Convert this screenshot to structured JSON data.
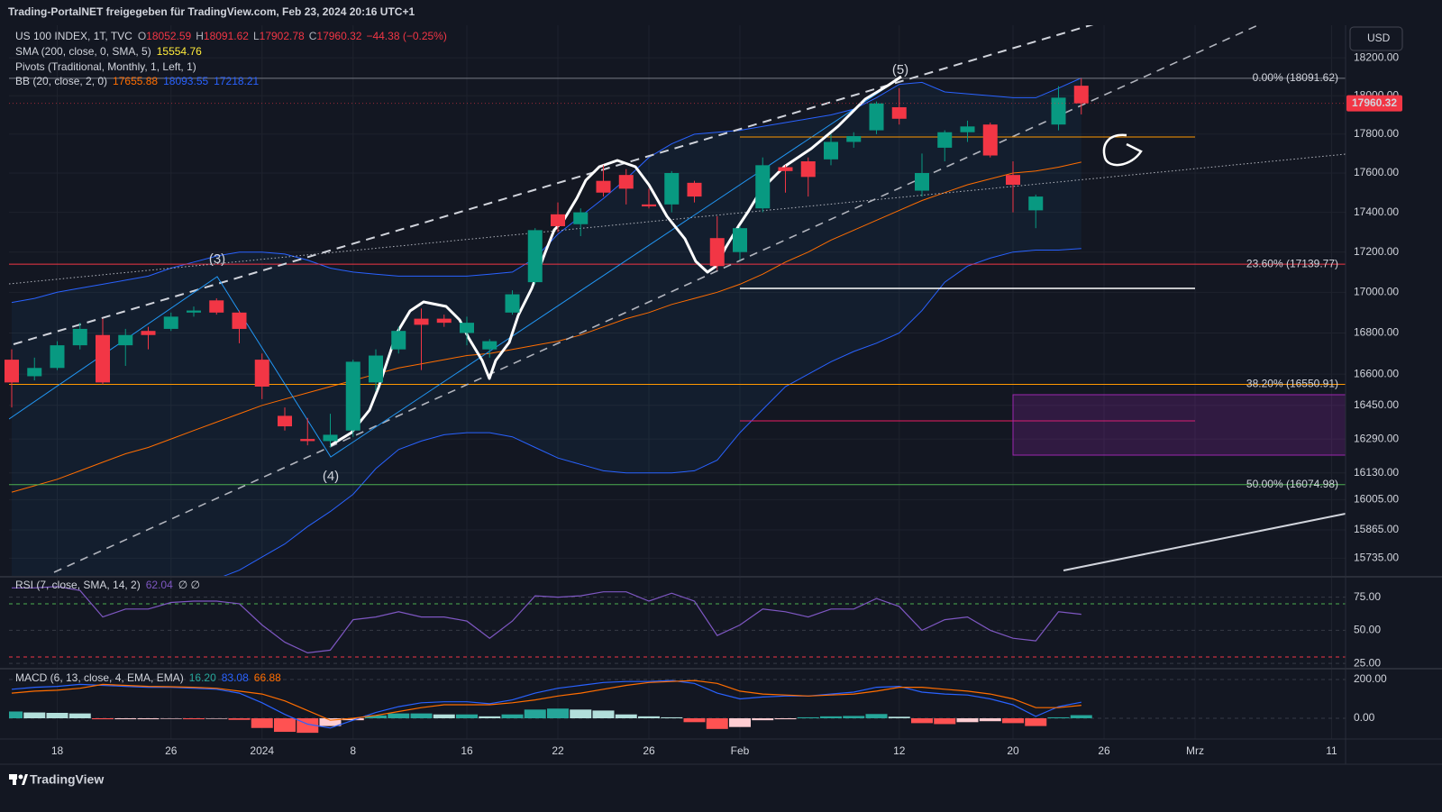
{
  "header": {
    "title": "Trading-PortalNET freigegeben für TradingView.com, Feb 23, 2024 20:16 UTC+1",
    "currency": "USD",
    "logo": "TradingView"
  },
  "legend": {
    "symbol": "US 100 INDEX, 1T, TVC",
    "ohlc_labels": [
      "O",
      "H",
      "L",
      "C"
    ],
    "change": "−44.38 (−0.25%)",
    "sma": "SMA (200, close, 0, SMA, 5)",
    "sma_value": 15554.76,
    "pivots": "Pivots (Traditional, Monthly, 1, Left, 1)",
    "bb": "BB (20, close, 2, 0)",
    "rsi": "RSI (7, close, SMA, 14, 2)",
    "rsi_extra": "∅ ∅",
    "macd": "MACD (6, 13, close, 4, EMA, EMA)",
    "macd_values": [
      "16.20",
      "83.08",
      "66.88"
    ]
  },
  "chart_data": [
    {
      "type": "candlestick",
      "categories": [
        null,
        null,
        "18",
        null,
        null,
        null,
        null,
        "26",
        null,
        null,
        null,
        "2024",
        null,
        null,
        null,
        "8",
        null,
        null,
        null,
        null,
        "16",
        null,
        null,
        null,
        "22",
        null,
        null,
        null,
        "26",
        null,
        null,
        null,
        "Feb",
        null,
        null,
        null,
        null,
        null,
        null,
        "12",
        null,
        null,
        null,
        null,
        "20",
        null,
        null,
        null,
        "26",
        null,
        null,
        null,
        "Mrz",
        null,
        null,
        null,
        null,
        null,
        "11"
      ],
      "open": [
        16670,
        16590,
        16630,
        16740,
        16790,
        16740,
        16810,
        16820,
        16900,
        16960,
        16900,
        16670,
        16400,
        16290,
        16280,
        16330,
        16560,
        16720,
        16870,
        16870,
        16800,
        16720,
        16900,
        17050,
        17390,
        17340,
        17560,
        17590,
        17440,
        17440,
        17550,
        17270,
        17200,
        17420,
        17630,
        17660,
        17670,
        17760,
        17820,
        17940,
        17510,
        17730,
        17810,
        17850,
        17590,
        17410,
        17850,
        18052.59,
        null,
        null,
        null,
        null,
        null,
        null,
        null,
        null,
        null,
        null,
        null
      ],
      "high": [
        16720,
        16680,
        16760,
        16850,
        16870,
        16820,
        16830,
        16900,
        16930,
        16970,
        16910,
        16700,
        16440,
        16390,
        16410,
        16670,
        16720,
        16830,
        16920,
        16890,
        16880,
        16770,
        17010,
        17320,
        17450,
        17420,
        17640,
        17620,
        17520,
        17610,
        17560,
        17380,
        17330,
        17680,
        17640,
        17680,
        17800,
        17810,
        17970,
        18040,
        17700,
        17820,
        17870,
        17860,
        17660,
        17490,
        18050,
        18091.62,
        null,
        null,
        null,
        null,
        null,
        null,
        null,
        null,
        null,
        null,
        null
      ],
      "low": [
        16440,
        16570,
        16620,
        16720,
        16550,
        16640,
        16720,
        16810,
        16880,
        16890,
        16750,
        16480,
        16330,
        16260,
        16250,
        16300,
        16520,
        16700,
        16620,
        16830,
        16740,
        16680,
        16890,
        17040,
        17300,
        17280,
        17480,
        17440,
        17420,
        17400,
        17450,
        17110,
        17160,
        17400,
        17500,
        17480,
        17640,
        17730,
        17800,
        17850,
        17480,
        17660,
        17760,
        17680,
        17400,
        17320,
        17820,
        17902.78,
        null,
        null,
        null,
        null,
        null,
        null,
        null,
        null,
        null,
        null,
        null
      ],
      "close": [
        16560,
        16630,
        16740,
        16820,
        16560,
        16790,
        16790,
        16880,
        16910,
        16900,
        16820,
        16540,
        16350,
        16280,
        16310,
        16660,
        16690,
        16810,
        16840,
        16850,
        16850,
        16760,
        16990,
        17310,
        17330,
        17400,
        17500,
        17520,
        17430,
        17600,
        17480,
        17130,
        17320,
        17640,
        17610,
        17580,
        17760,
        17790,
        17960,
        17880,
        17600,
        17810,
        17840,
        17690,
        17540,
        17480,
        17990,
        17960.32,
        null,
        null,
        null,
        null,
        null,
        null,
        null,
        null,
        null,
        null,
        null
      ],
      "up_color": "#089981",
      "down_color": "#f23645",
      "log_scale": true,
      "ylim": [
        15650,
        18373
      ],
      "yticks": [
        {
          "value": 18200,
          "label": "18200.00"
        },
        {
          "value": 18000,
          "label": "18000.00"
        },
        {
          "value": 17800,
          "label": "17800.00"
        },
        {
          "value": 17600,
          "label": "17600.00"
        },
        {
          "value": 17400,
          "label": "17400.00"
        },
        {
          "value": 17200,
          "label": "17200.00"
        },
        {
          "value": 17000,
          "label": "17000.00"
        },
        {
          "value": 16800,
          "label": "16800.00"
        },
        {
          "value": 16600,
          "label": "16600.00"
        },
        {
          "value": 16450,
          "label": "16450.00"
        },
        {
          "value": 16290,
          "label": "16290.00"
        },
        {
          "value": 16130,
          "label": "16130.00"
        },
        {
          "value": 16005,
          "label": "16005.00"
        },
        {
          "value": 15865,
          "label": "15865.00"
        },
        {
          "value": 15735,
          "label": "15735.00"
        }
      ],
      "grid": true,
      "bands": {
        "upper": {
          "color": "#2962ff",
          "values": [
            16950,
            16970,
            17000,
            17020,
            17040,
            17060,
            17080,
            17120,
            17150,
            17180,
            17200,
            17200,
            17190,
            17160,
            17120,
            17100,
            17090,
            17080,
            17080,
            17080,
            17080,
            17090,
            17100,
            17170,
            17290,
            17380,
            17470,
            17570,
            17680,
            17750,
            17800,
            17810,
            17820,
            17840,
            17860,
            17880,
            17900,
            17930,
            17990,
            18060,
            18070,
            18020,
            18010,
            18000,
            17990,
            17990,
            18040,
            18093.55,
            null,
            null,
            null,
            null,
            null,
            null,
            null,
            null,
            null,
            null,
            null
          ]
        },
        "basis": {
          "color": "#ff6d00",
          "values": [
            16040,
            16070,
            16100,
            16140,
            16180,
            16220,
            16250,
            16290,
            16330,
            16370,
            16410,
            16450,
            16480,
            16510,
            16540,
            16570,
            16600,
            16630,
            16650,
            16670,
            16690,
            16700,
            16720,
            16740,
            16760,
            16790,
            16830,
            16870,
            16900,
            16940,
            16970,
            17000,
            17040,
            17090,
            17150,
            17200,
            17260,
            17310,
            17360,
            17410,
            17460,
            17500,
            17540,
            17570,
            17600,
            17610,
            17630,
            17655.88,
            null,
            null,
            null,
            null,
            null,
            null,
            null,
            null,
            null,
            null,
            null
          ]
        },
        "lower": {
          "color": "#2962ff",
          "values": [
            15250,
            15300,
            15350,
            15400,
            15450,
            15500,
            15550,
            15600,
            15620,
            15640,
            15680,
            15740,
            15800,
            15880,
            15950,
            16030,
            16150,
            16240,
            16280,
            16310,
            16320,
            16320,
            16300,
            16250,
            16200,
            16170,
            16140,
            16130,
            16130,
            16130,
            16140,
            16190,
            16320,
            16430,
            16540,
            16600,
            16660,
            16710,
            16750,
            16800,
            16910,
            17050,
            17130,
            17170,
            17200,
            17210,
            17210,
            17218.21,
            null,
            null,
            null,
            null,
            null,
            null,
            null,
            null,
            null,
            null,
            null
          ]
        }
      },
      "fib_levels": [
        {
          "value": 18091.62,
          "label": "0.00% (18091.62)",
          "color": "#787b86"
        },
        {
          "value": 17139.77,
          "label": "23.60% (17139.77)",
          "color": "#f23645"
        },
        {
          "value": 16550.91,
          "label": "38.20% (16550.91)",
          "color": "#ff9800"
        },
        {
          "value": 16074.98,
          "label": "50.00% (16074.98)",
          "color": "#4caf50"
        }
      ],
      "wave_labels": [
        "(3)",
        "(4)",
        "(5)"
      ]
    },
    {
      "type": "line",
      "color": "#7e57c2",
      "values": [
        82,
        82,
        83,
        80,
        60,
        66,
        66,
        71,
        72,
        72,
        70,
        54,
        41,
        33,
        35,
        58,
        60,
        64,
        60,
        60,
        57,
        44,
        57,
        76,
        75,
        76,
        79,
        79,
        72,
        78,
        72,
        46,
        54,
        66,
        64,
        60,
        66,
        66,
        74,
        68,
        50,
        58,
        60,
        50,
        44,
        42,
        64,
        62.04,
        null,
        null,
        null,
        null,
        null,
        null,
        null,
        null,
        null,
        null,
        null
      ],
      "ylim": [
        21,
        89
      ],
      "yticks": [
        {
          "value": 75,
          "label": "75.00"
        },
        {
          "value": 50,
          "label": "50.00"
        },
        {
          "value": 25,
          "label": "25.00"
        }
      ]
    },
    {
      "type": "macd",
      "histogram": [
        35,
        30,
        28,
        25,
        -5,
        -5,
        -5,
        -3,
        -5,
        -3,
        -8,
        -50,
        -70,
        -75,
        -40,
        -10,
        15,
        25,
        25,
        20,
        20,
        10,
        20,
        45,
        50,
        45,
        40,
        20,
        10,
        5,
        -20,
        -55,
        -45,
        -10,
        -5,
        5,
        10,
        12,
        22,
        8,
        -25,
        -30,
        -20,
        -15,
        -25,
        -40,
        5,
        16.2,
        null,
        null,
        null,
        null,
        null,
        null,
        null,
        null,
        null,
        null,
        null
      ],
      "histogram_colors": [
        "#26a69a",
        "#b2dfdb",
        "#ff5252",
        "#ffcdd2"
      ],
      "macd": {
        "color": "#2962ff",
        "values": [
          150,
          160,
          165,
          175,
          170,
          165,
          160,
          160,
          155,
          150,
          130,
          80,
          20,
          -30,
          -50,
          -10,
          30,
          60,
          80,
          85,
          85,
          75,
          95,
          130,
          155,
          170,
          185,
          190,
          190,
          195,
          180,
          130,
          100,
          110,
          115,
          115,
          125,
          135,
          160,
          165,
          135,
          125,
          120,
          100,
          70,
          10,
          60,
          83.08,
          null,
          null,
          null,
          null,
          null,
          null,
          null,
          null,
          null,
          null,
          null
        ]
      },
      "signal": {
        "color": "#ff6d00",
        "values": [
          130,
          140,
          145,
          155,
          175,
          170,
          165,
          163,
          160,
          155,
          140,
          125,
          90,
          40,
          -10,
          0,
          15,
          35,
          55,
          70,
          70,
          70,
          80,
          95,
          115,
          130,
          150,
          170,
          185,
          190,
          195,
          180,
          140,
          125,
          120,
          115,
          120,
          125,
          140,
          160,
          160,
          150,
          140,
          125,
          100,
          55,
          55,
          66.88,
          null,
          null,
          null,
          null,
          null,
          null,
          null,
          null,
          null,
          null,
          null
        ]
      },
      "ylim": [
        -107,
        256
      ],
      "yticks": [
        {
          "value": 200,
          "label": "200.00"
        },
        {
          "value": 0,
          "label": "0.00"
        }
      ]
    }
  ]
}
